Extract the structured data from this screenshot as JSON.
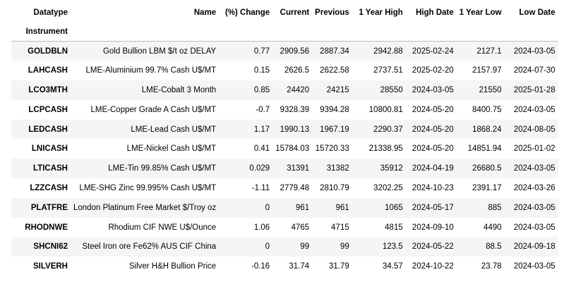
{
  "table": {
    "column_header_label": "Datatype",
    "index_header_label": "Instrument",
    "columns": [
      "Name",
      "(%) Change",
      "Current",
      "Previous",
      "1 Year High",
      "High Date",
      "1 Year Low",
      "Low Date"
    ],
    "rows": [
      {
        "instrument": "GOLDBLN",
        "cells": [
          "Gold Bullion LBM $/t oz DELAY",
          "0.77",
          "2909.56",
          "2887.34",
          "2942.88",
          "2025-02-24",
          "2127.1",
          "2024-03-05"
        ]
      },
      {
        "instrument": "LAHCASH",
        "cells": [
          "LME-Aluminium 99.7% Cash U$/MT",
          "0.15",
          "2626.5",
          "2622.58",
          "2737.51",
          "2025-02-20",
          "2157.97",
          "2024-07-30"
        ]
      },
      {
        "instrument": "LCO3MTH",
        "cells": [
          "LME-Cobalt 3 Month",
          "0.85",
          "24420",
          "24215",
          "28550",
          "2024-03-05",
          "21550",
          "2025-01-28"
        ]
      },
      {
        "instrument": "LCPCASH",
        "cells": [
          "LME-Copper Grade A Cash U$/MT",
          "-0.7",
          "9328.39",
          "9394.28",
          "10800.81",
          "2024-05-20",
          "8400.75",
          "2024-03-05"
        ]
      },
      {
        "instrument": "LEDCASH",
        "cells": [
          "LME-Lead Cash U$/MT",
          "1.17",
          "1990.13",
          "1967.19",
          "2290.37",
          "2024-05-20",
          "1868.24",
          "2024-08-05"
        ]
      },
      {
        "instrument": "LNICASH",
        "cells": [
          "LME-Nickel Cash U$/MT",
          "0.41",
          "15784.03",
          "15720.33",
          "21338.95",
          "2024-05-20",
          "14851.94",
          "2025-01-02"
        ]
      },
      {
        "instrument": "LTICASH",
        "cells": [
          "LME-Tin 99.85% Cash U$/MT",
          "0.029",
          "31391",
          "31382",
          "35912",
          "2024-04-19",
          "26680.5",
          "2024-03-05"
        ]
      },
      {
        "instrument": "LZZCASH",
        "cells": [
          "LME-SHG Zinc 99.995% Cash U$/MT",
          "-1.11",
          "2779.48",
          "2810.79",
          "3202.25",
          "2024-10-23",
          "2391.17",
          "2024-03-26"
        ]
      },
      {
        "instrument": "PLATFRE",
        "cells": [
          "London Platinum Free Market $/Troy oz",
          "0",
          "961",
          "961",
          "1065",
          "2024-05-17",
          "885",
          "2024-03-05"
        ]
      },
      {
        "instrument": "RHODNWE",
        "cells": [
          "Rhodium CIF NWE U$/Ounce",
          "1.06",
          "4765",
          "4715",
          "4815",
          "2024-09-10",
          "4490",
          "2024-03-05"
        ]
      },
      {
        "instrument": "SHCNI62",
        "cells": [
          "Steel Iron ore Fe62% AUS CIF China",
          "0",
          "99",
          "99",
          "123.5",
          "2024-05-22",
          "88.5",
          "2024-09-18"
        ]
      },
      {
        "instrument": "SILVERH",
        "cells": [
          "Silver H&H Bullion Price",
          "-0.16",
          "31.74",
          "31.79",
          "34.57",
          "2024-10-22",
          "23.78",
          "2024-03-05"
        ]
      }
    ]
  }
}
